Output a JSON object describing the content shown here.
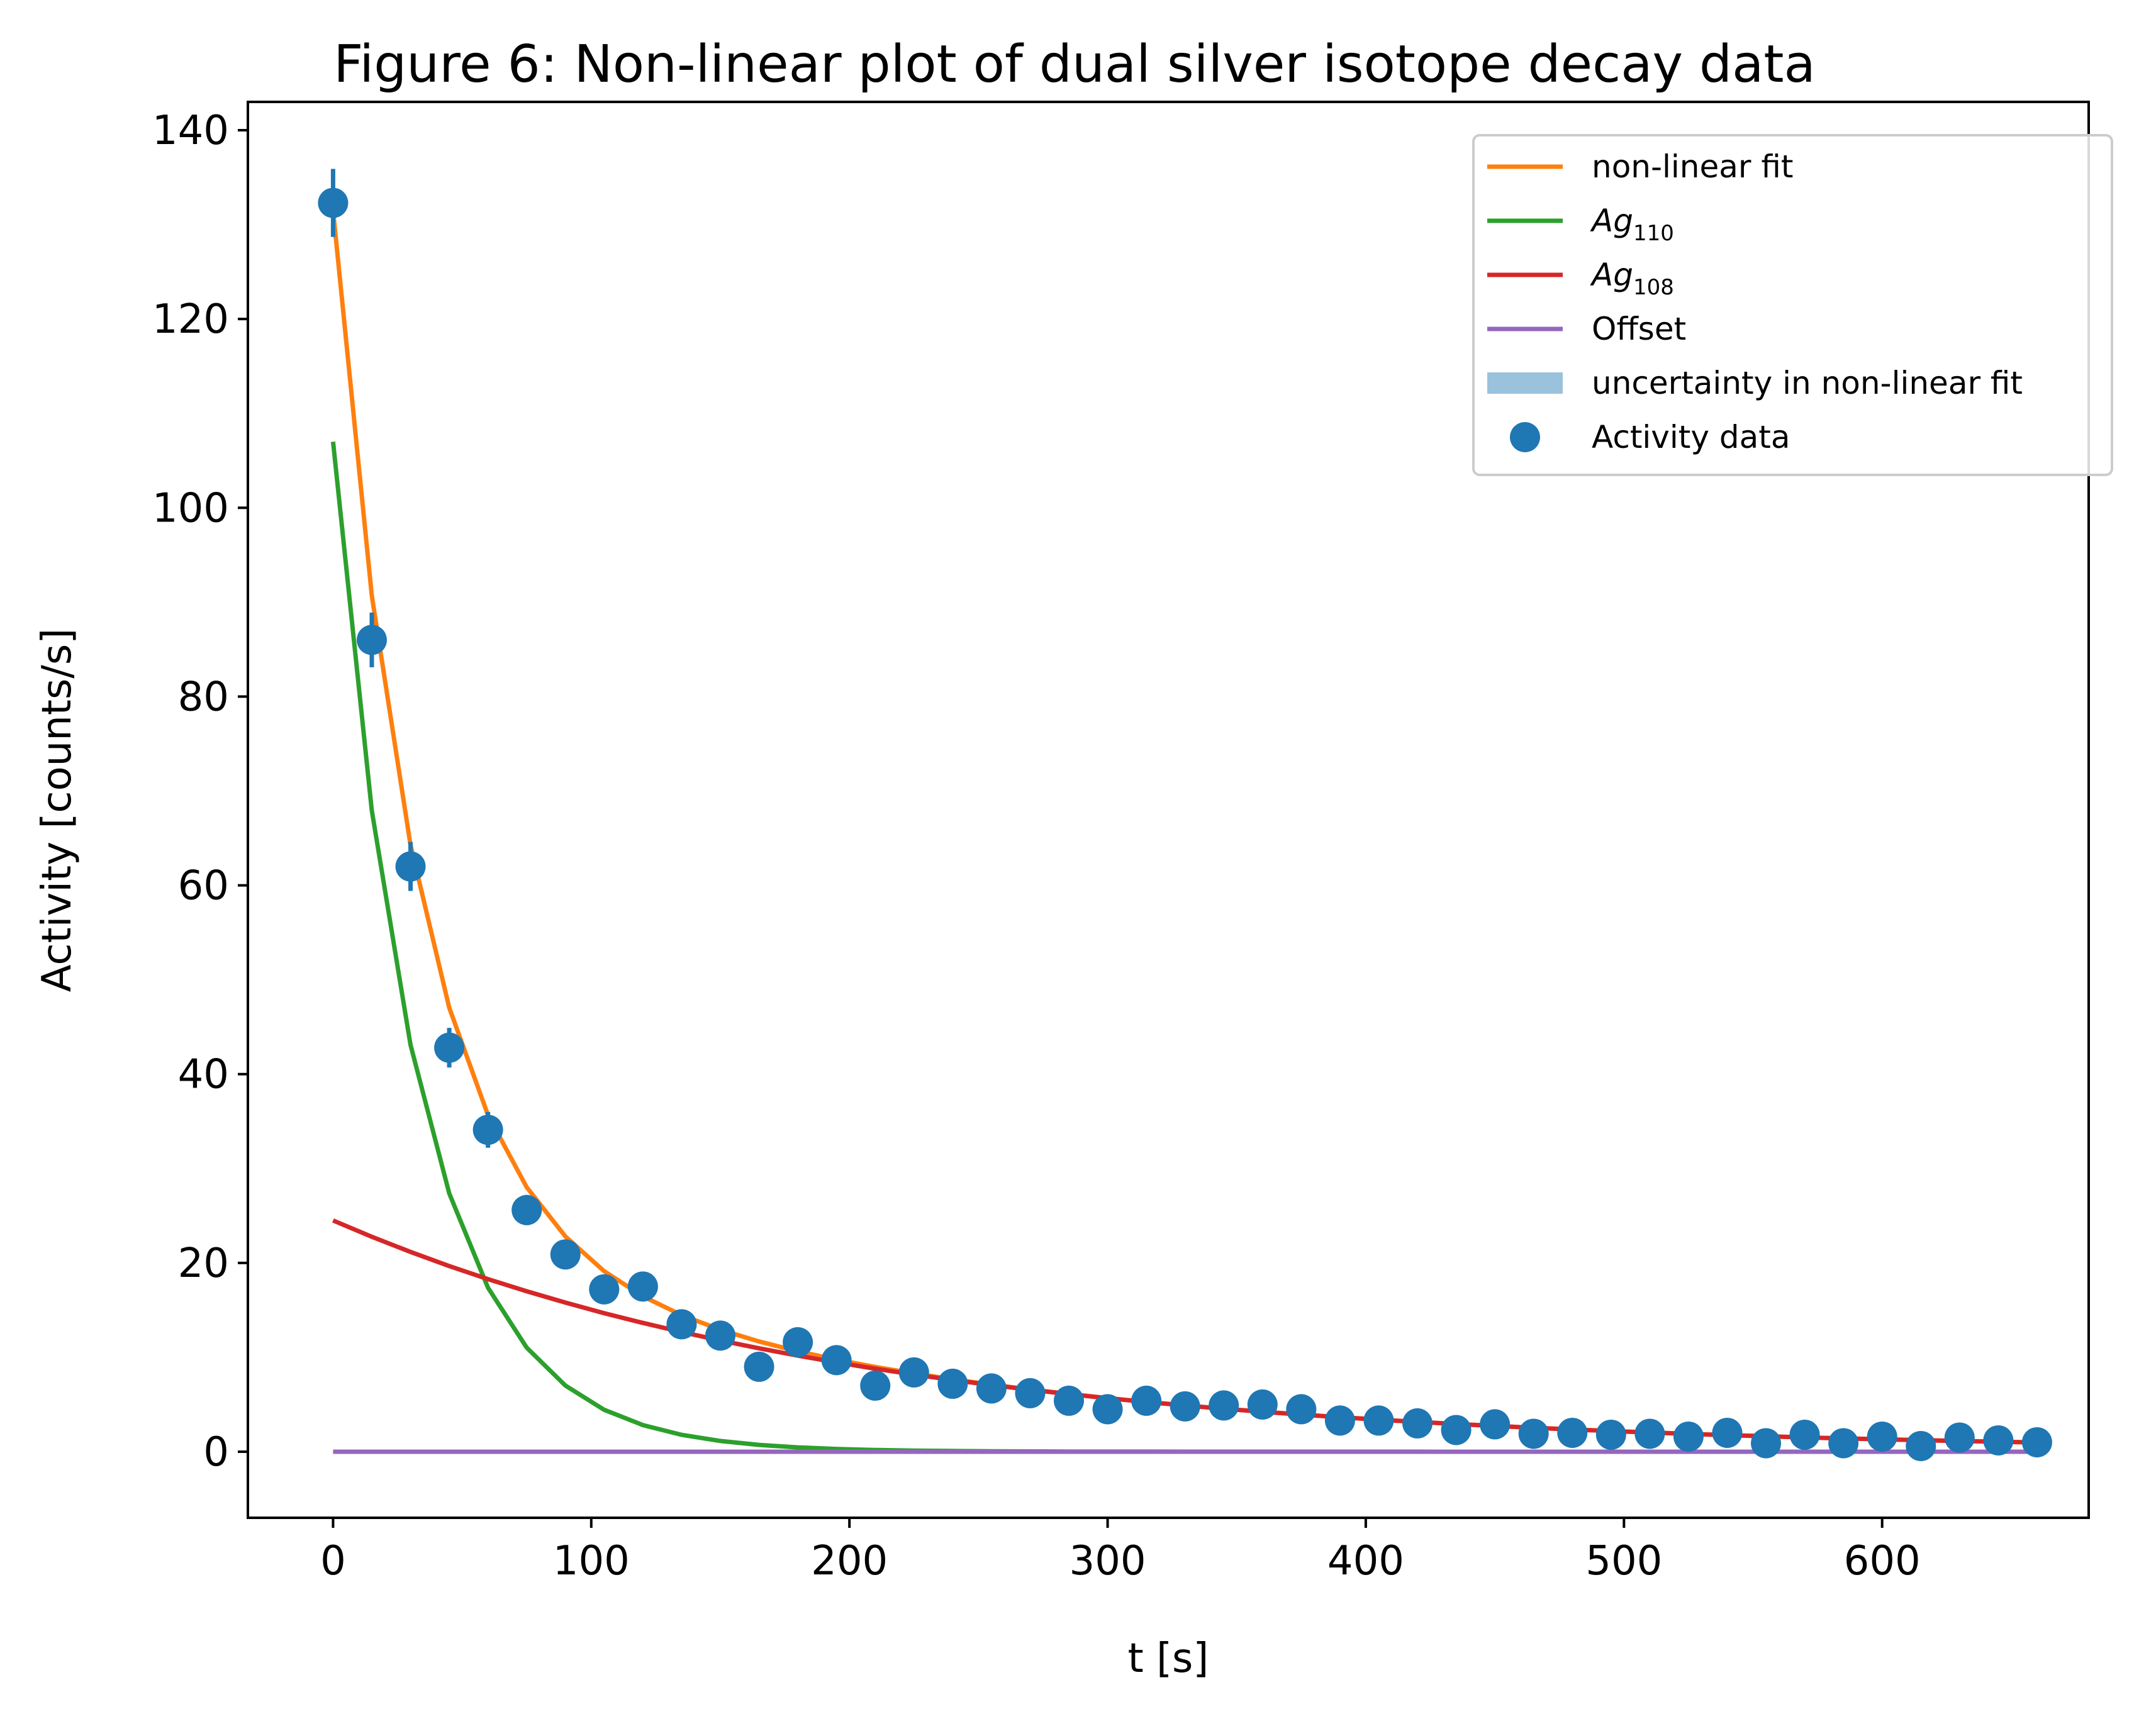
{
  "chart_data": {
    "type": "scatter",
    "title": "Figure 6: Non-linear plot of dual silver isotope decay data",
    "xlabel": "t [s]",
    "ylabel": "Activity [counts/s]",
    "xlim": [
      -33,
      680
    ],
    "ylim": [
      -7,
      143
    ],
    "xticks": [
      0,
      100,
      200,
      300,
      400,
      500,
      600
    ],
    "yticks": [
      0,
      20,
      40,
      60,
      80,
      100,
      120,
      140
    ],
    "xtick_labels": [
      "0",
      "100",
      "200",
      "300",
      "400",
      "500",
      "600"
    ],
    "ytick_labels": [
      "0",
      "20",
      "40",
      "60",
      "80",
      "100",
      "120",
      "140"
    ],
    "grid": false,
    "legend_position": "top-right",
    "legend": [
      {
        "key": "fit",
        "label": "non-linear fit",
        "kind": "line",
        "color": "#ff7f0e"
      },
      {
        "key": "ag110",
        "label": "Ag",
        "subscript": "110",
        "italic": true,
        "kind": "line",
        "color": "#2ca02c"
      },
      {
        "key": "ag108",
        "label": "Ag",
        "subscript": "108",
        "italic": true,
        "kind": "line",
        "color": "#d62728"
      },
      {
        "key": "offset",
        "label": "Offset",
        "kind": "line",
        "color": "#9467bd"
      },
      {
        "key": "band",
        "label": "uncertainty in non-linear fit",
        "kind": "patch",
        "color": "#1f77b4"
      },
      {
        "key": "data",
        "label": "Activity data",
        "kind": "marker",
        "color": "#1f77b4"
      }
    ],
    "model": {
      "ag110": {
        "A0": 107,
        "tau": 33
      },
      "ag108": {
        "A0": 24.5,
        "tau": 205
      },
      "offset": 0,
      "t_start": 0,
      "t_end": 660,
      "t_step": 15
    },
    "series": [
      {
        "name": "Activity data",
        "color": "#1f77b4",
        "x": [
          0,
          15,
          30,
          45,
          60,
          75,
          90,
          105,
          120,
          135,
          150,
          165,
          180,
          195,
          210,
          225,
          240,
          255,
          270,
          285,
          300,
          315,
          330,
          345,
          360,
          375,
          390,
          405,
          420,
          435,
          450,
          465,
          480,
          495,
          510,
          525,
          540,
          555,
          570,
          585,
          600,
          615,
          630,
          645,
          660
        ],
        "y": [
          132.3,
          86.0,
          62.0,
          42.8,
          34.1,
          25.6,
          20.9,
          17.2,
          17.5,
          13.5,
          12.3,
          9.0,
          11.6,
          9.7,
          7.0,
          8.4,
          7.2,
          6.7,
          6.2,
          5.4,
          4.5,
          5.4,
          4.8,
          4.9,
          5.0,
          4.5,
          3.3,
          3.3,
          3.0,
          2.3,
          2.9,
          1.9,
          2.0,
          1.8,
          1.9,
          1.6,
          2.0,
          0.9,
          1.8,
          0.9,
          1.6,
          0.6,
          1.5,
          1.2,
          1.0
        ],
        "yerr": [
          3.6,
          2.9,
          2.6,
          2.1,
          1.9,
          1.6,
          1.5,
          1.3,
          1.3,
          1.2,
          1.1,
          1.0,
          1.1,
          1.0,
          0.9,
          0.9,
          0.9,
          0.8,
          0.8,
          0.8,
          0.7,
          0.8,
          0.7,
          0.7,
          0.7,
          0.7,
          0.6,
          0.6,
          0.6,
          0.5,
          0.6,
          0.5,
          0.5,
          0.5,
          0.5,
          0.5,
          0.5,
          0.4,
          0.5,
          0.4,
          0.5,
          0.3,
          0.5,
          0.4,
          0.4
        ]
      }
    ]
  }
}
